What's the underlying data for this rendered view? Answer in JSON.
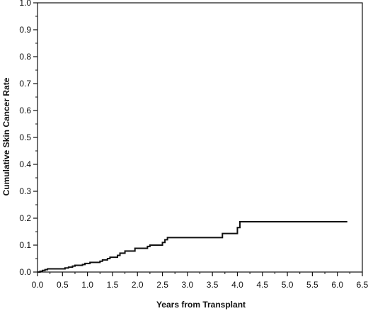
{
  "chart_data": {
    "type": "line",
    "step": true,
    "title": "",
    "xlabel": "Years from Transplant",
    "ylabel": "Cumulative Skin Cancer Rate",
    "xlim": [
      0.0,
      6.5
    ],
    "ylim": [
      0.0,
      1.0
    ],
    "x_ticks": [
      "0.0",
      "0.5",
      "1.0",
      "1.5",
      "2.0",
      "2.5",
      "3.0",
      "3.5",
      "4.0",
      "4.5",
      "5.0",
      "5.5",
      "6.0",
      "6.5"
    ],
    "y_ticks": [
      "0.0",
      "0.1",
      "0.2",
      "0.3",
      "0.4",
      "0.5",
      "0.6",
      "0.7",
      "0.8",
      "0.9",
      "1.0"
    ],
    "grid": false,
    "legend": "none",
    "line_color": "#111111",
    "series": [
      {
        "x": [
          0.0,
          0.05,
          0.1,
          0.15,
          0.2,
          0.55,
          0.62,
          0.7,
          0.75,
          0.9,
          0.95,
          1.05,
          1.25,
          1.3,
          1.4,
          1.45,
          1.6,
          1.65,
          1.75,
          1.95,
          2.2,
          2.25,
          2.5,
          2.55,
          2.6,
          3.6,
          3.7,
          3.95,
          4.0,
          4.05,
          6.2
        ],
        "y": [
          0.0,
          0.003,
          0.006,
          0.009,
          0.012,
          0.015,
          0.018,
          0.022,
          0.025,
          0.028,
          0.032,
          0.036,
          0.04,
          0.045,
          0.05,
          0.055,
          0.062,
          0.07,
          0.078,
          0.088,
          0.095,
          0.1,
          0.11,
          0.12,
          0.128,
          0.128,
          0.143,
          0.143,
          0.165,
          0.187,
          0.187
        ]
      }
    ]
  }
}
